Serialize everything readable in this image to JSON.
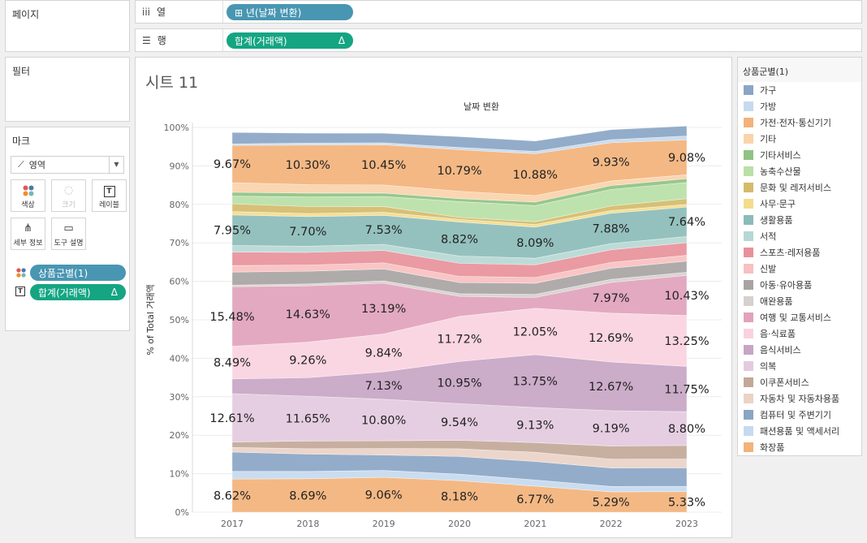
{
  "pages_card": {
    "title": "페이지"
  },
  "filters_card": {
    "title": "필터"
  },
  "marks_card": {
    "title": "마크",
    "mark_type": "영역",
    "buttons": {
      "color": "색상",
      "size": "크기",
      "label": "레이블",
      "detail": "세부 정보",
      "tooltip": "도구 설명"
    },
    "pills": {
      "color_field": "상품군별(1)",
      "label_field": "합계(거래액)",
      "label_delta": "Δ"
    }
  },
  "columns_shelf": {
    "label": "열",
    "pill": "⊞ 년(날짜 변환)"
  },
  "rows_shelf": {
    "label": "행",
    "pill": "합계(거래액)",
    "pill_delta": "Δ"
  },
  "sheet": {
    "title": "시트 11"
  },
  "legend": {
    "title": "상품군별(1)",
    "items": [
      {
        "label": "가구",
        "color": "#8aa5c5"
      },
      {
        "label": "가방",
        "color": "#c6daef"
      },
      {
        "label": "가전·전자·통신기기",
        "color": "#f3b27a"
      },
      {
        "label": "기타",
        "color": "#fad3ab"
      },
      {
        "label": "기타서비스",
        "color": "#8fc283"
      },
      {
        "label": "농축수산물",
        "color": "#b9e0a6"
      },
      {
        "label": "문화 및 레저서비스",
        "color": "#d4bb6b"
      },
      {
        "label": "사무·문구",
        "color": "#f4dc8c"
      },
      {
        "label": "생활용품",
        "color": "#8bbcb9"
      },
      {
        "label": "서적",
        "color": "#b6d8d4"
      },
      {
        "label": "스포츠·레저용품",
        "color": "#e8919a"
      },
      {
        "label": "신발",
        "color": "#f8c0c0"
      },
      {
        "label": "아동·유아용품",
        "color": "#a9a4a4"
      },
      {
        "label": "애완용품",
        "color": "#d6d0cf"
      },
      {
        "label": "여행 및 교통서비스",
        "color": "#e1a2bb"
      },
      {
        "label": "음·식료품",
        "color": "#fad2df"
      },
      {
        "label": "음식서비스",
        "color": "#c7a5c4"
      },
      {
        "label": "의복",
        "color": "#e4cae0"
      },
      {
        "label": "이쿠폰서비스",
        "color": "#c2a898"
      },
      {
        "label": "자동차 및 자동차용품",
        "color": "#ead3c7"
      },
      {
        "label": "컴퓨터 및 주변기기",
        "color": "#8aa5c5"
      },
      {
        "label": "패션용품 및 액세서리",
        "color": "#c6daef"
      },
      {
        "label": "화장품",
        "color": "#f3b27a"
      }
    ]
  },
  "chart_data": {
    "type": "area",
    "title": "날짜 변환",
    "ylabel": "% of Total 거래액",
    "x": [
      "2017",
      "2018",
      "2019",
      "2020",
      "2021",
      "2022",
      "2023"
    ],
    "y_ticks": [
      "0%",
      "10%",
      "20%",
      "30%",
      "40%",
      "50%",
      "60%",
      "70%",
      "80%",
      "90%",
      "100%"
    ],
    "ylim": [
      0,
      100
    ],
    "stack_order": "bottom-to-top",
    "series": [
      {
        "name": "화장품",
        "color": "#f3b27a",
        "values": [
          8.62,
          8.69,
          9.06,
          8.18,
          6.77,
          5.29,
          5.33
        ],
        "labels": [
          "8.62%",
          "8.69%",
          "9.06%",
          "8.18%",
          "6.77%",
          "5.29%",
          "5.33%"
        ]
      },
      {
        "name": "패션용품 및 액세서리",
        "color": "#c6daef",
        "values": [
          2.0,
          1.9,
          1.8,
          1.7,
          1.6,
          1.4,
          1.4
        ]
      },
      {
        "name": "컴퓨터 및 주변기기",
        "color": "#8aa5c5",
        "values": [
          5.0,
          4.5,
          4.0,
          4.6,
          4.8,
          4.8,
          4.8
        ]
      },
      {
        "name": "자동차 및 자동차용품",
        "color": "#ead3c7",
        "values": [
          1.2,
          1.4,
          1.7,
          2.0,
          2.4,
          2.3,
          2.3
        ]
      },
      {
        "name": "이쿠폰서비스",
        "color": "#c2a898",
        "values": [
          1.4,
          2.0,
          2.0,
          2.2,
          2.5,
          3.4,
          3.5
        ]
      },
      {
        "name": "의복",
        "color": "#e4cae0",
        "values": [
          12.61,
          11.65,
          10.8,
          9.54,
          9.13,
          9.19,
          8.8
        ],
        "labels": [
          "12.61%",
          "11.65%",
          "10.80%",
          "9.54%",
          "9.13%",
          "9.19%",
          "8.80%"
        ]
      },
      {
        "name": "음식서비스",
        "color": "#c7a5c4",
        "values": [
          3.8,
          4.8,
          7.13,
          10.95,
          13.75,
          12.67,
          11.75
        ],
        "labels": [
          "",
          "",
          "7.13%",
          "10.95%",
          "13.75%",
          "12.67%",
          "11.75%"
        ]
      },
      {
        "name": "음·식료품",
        "color": "#fad2df",
        "values": [
          8.49,
          9.26,
          9.84,
          11.72,
          12.05,
          12.69,
          13.25
        ],
        "labels": [
          "8.49%",
          "9.26%",
          "9.84%",
          "11.72%",
          "12.05%",
          "12.69%",
          "13.25%"
        ]
      },
      {
        "name": "여행 및 교통서비스",
        "color": "#e1a2bb",
        "values": [
          15.48,
          14.63,
          13.19,
          5.2,
          2.8,
          7.97,
          10.43
        ],
        "labels": [
          "15.48%",
          "14.63%",
          "13.19%",
          "",
          "",
          "7.97%",
          "10.43%"
        ]
      },
      {
        "name": "애완용품",
        "color": "#d6d0cf",
        "values": [
          0.4,
          0.5,
          0.6,
          0.7,
          0.8,
          0.8,
          0.8
        ]
      },
      {
        "name": "아동·유아용품",
        "color": "#a9a4a4",
        "values": [
          3.4,
          3.3,
          3.1,
          2.9,
          2.9,
          2.9,
          2.9
        ]
      },
      {
        "name": "신발",
        "color": "#f8c0c0",
        "values": [
          1.7,
          1.6,
          1.6,
          1.6,
          1.5,
          1.5,
          1.5
        ]
      },
      {
        "name": "스포츠·레저용품",
        "color": "#e8919a",
        "values": [
          3.5,
          3.3,
          3.2,
          3.4,
          3.3,
          3.3,
          3.3
        ]
      },
      {
        "name": "서적",
        "color": "#b6d8d4",
        "values": [
          1.7,
          1.6,
          1.6,
          1.9,
          1.7,
          1.6,
          1.6
        ]
      },
      {
        "name": "생활용품",
        "color": "#8bbcb9",
        "values": [
          7.95,
          7.7,
          7.53,
          8.82,
          8.09,
          7.88,
          7.64
        ],
        "labels": [
          "7.95%",
          "7.70%",
          "7.53%",
          "8.82%",
          "8.09%",
          "7.88%",
          "7.64%"
        ]
      },
      {
        "name": "사무·문구",
        "color": "#f4dc8c",
        "values": [
          0.9,
          0.8,
          0.8,
          0.7,
          0.7,
          0.7,
          0.7
        ]
      },
      {
        "name": "문화 및 레저서비스",
        "color": "#d4bb6b",
        "values": [
          2.0,
          1.8,
          1.5,
          0.5,
          0.7,
          1.2,
          1.5
        ]
      },
      {
        "name": "농축수산물",
        "color": "#b9e0a6",
        "values": [
          2.0,
          2.5,
          2.6,
          4.1,
          4.2,
          4.3,
          4.2
        ]
      },
      {
        "name": "기타서비스",
        "color": "#8fc283",
        "values": [
          1.0,
          1.0,
          0.9,
          0.8,
          0.9,
          1.0,
          1.0
        ]
      },
      {
        "name": "기타",
        "color": "#fad3ab",
        "values": [
          2.5,
          2.2,
          2.1,
          1.9,
          1.7,
          1.2,
          1.0
        ]
      },
      {
        "name": "가전·전자·통신기기",
        "color": "#f3b27a",
        "values": [
          9.67,
          10.3,
          10.45,
          10.79,
          10.88,
          9.93,
          9.08
        ],
        "labels": [
          "9.67%",
          "10.30%",
          "10.45%",
          "10.79%",
          "10.88%",
          "9.93%",
          "9.08%"
        ]
      },
      {
        "name": "가방",
        "color": "#c6daef",
        "values": [
          0.4,
          0.5,
          0.5,
          0.6,
          0.6,
          0.8,
          1.0
        ]
      },
      {
        "name": "가구",
        "color": "#8aa5c5",
        "values": [
          2.98,
          2.58,
          2.49,
          2.8,
          2.69,
          2.59,
          2.58
        ]
      }
    ]
  }
}
